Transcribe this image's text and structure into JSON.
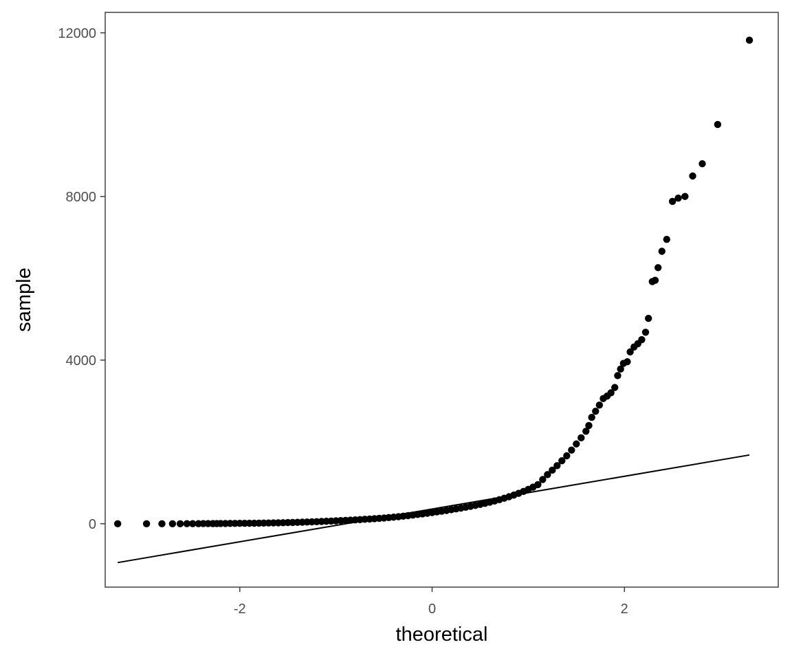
{
  "chart_data": {
    "type": "scatter",
    "title": "",
    "xlabel": "theoretical",
    "ylabel": "sample",
    "xlim": [
      -3.4,
      3.6
    ],
    "ylim": [
      -1550,
      12500
    ],
    "x_ticks": [
      -2,
      0,
      2
    ],
    "x_tick_labels": [
      "-2",
      "0",
      "2"
    ],
    "y_ticks": [
      0,
      4000,
      8000,
      12000
    ],
    "y_tick_labels": [
      "0",
      "4000",
      "8000",
      "12000"
    ],
    "grid": false,
    "legend": "none",
    "colors": {
      "points": "#000000",
      "line": "#000000",
      "panel_border": "#333333",
      "tick_label": "#4d4d4d"
    },
    "reference_line": {
      "x": [
        -3.27,
        3.3
      ],
      "y": [
        -950,
        1680
      ]
    },
    "points": [
      {
        "x": -3.27,
        "y": 0
      },
      {
        "x": -2.97,
        "y": 0
      },
      {
        "x": -2.81,
        "y": 0
      },
      {
        "x": -2.7,
        "y": 0
      },
      {
        "x": -2.62,
        "y": 0
      },
      {
        "x": -2.55,
        "y": 1
      },
      {
        "x": -2.49,
        "y": 2
      },
      {
        "x": -2.43,
        "y": 2
      },
      {
        "x": -2.38,
        "y": 3
      },
      {
        "x": -2.33,
        "y": 3
      },
      {
        "x": -2.28,
        "y": 4
      },
      {
        "x": -2.24,
        "y": 4
      },
      {
        "x": -2.2,
        "y": 5
      },
      {
        "x": -2.15,
        "y": 6
      },
      {
        "x": -2.1,
        "y": 7
      },
      {
        "x": -2.05,
        "y": 8
      },
      {
        "x": -2.0,
        "y": 9
      },
      {
        "x": -1.95,
        "y": 10
      },
      {
        "x": -1.9,
        "y": 11
      },
      {
        "x": -1.85,
        "y": 12
      },
      {
        "x": -1.8,
        "y": 14
      },
      {
        "x": -1.75,
        "y": 16
      },
      {
        "x": -1.7,
        "y": 18
      },
      {
        "x": -1.65,
        "y": 20
      },
      {
        "x": -1.6,
        "y": 22
      },
      {
        "x": -1.55,
        "y": 25
      },
      {
        "x": -1.5,
        "y": 28
      },
      {
        "x": -1.45,
        "y": 31
      },
      {
        "x": -1.4,
        "y": 34
      },
      {
        "x": -1.35,
        "y": 38
      },
      {
        "x": -1.3,
        "y": 42
      },
      {
        "x": -1.25,
        "y": 46
      },
      {
        "x": -1.2,
        "y": 50
      },
      {
        "x": -1.15,
        "y": 55
      },
      {
        "x": -1.1,
        "y": 60
      },
      {
        "x": -1.05,
        "y": 65
      },
      {
        "x": -1.0,
        "y": 70
      },
      {
        "x": -0.95,
        "y": 76
      },
      {
        "x": -0.9,
        "y": 82
      },
      {
        "x": -0.85,
        "y": 88
      },
      {
        "x": -0.8,
        "y": 94
      },
      {
        "x": -0.75,
        "y": 101
      },
      {
        "x": -0.7,
        "y": 108
      },
      {
        "x": -0.65,
        "y": 115
      },
      {
        "x": -0.6,
        "y": 123
      },
      {
        "x": -0.55,
        "y": 131
      },
      {
        "x": -0.5,
        "y": 140
      },
      {
        "x": -0.45,
        "y": 150
      },
      {
        "x": -0.4,
        "y": 160
      },
      {
        "x": -0.35,
        "y": 172
      },
      {
        "x": -0.3,
        "y": 185
      },
      {
        "x": -0.25,
        "y": 198
      },
      {
        "x": -0.2,
        "y": 212
      },
      {
        "x": -0.15,
        "y": 226
      },
      {
        "x": -0.1,
        "y": 241
      },
      {
        "x": -0.05,
        "y": 256
      },
      {
        "x": 0.0,
        "y": 272
      },
      {
        "x": 0.05,
        "y": 289
      },
      {
        "x": 0.1,
        "y": 306
      },
      {
        "x": 0.15,
        "y": 324
      },
      {
        "x": 0.2,
        "y": 343
      },
      {
        "x": 0.25,
        "y": 362
      },
      {
        "x": 0.3,
        "y": 382
      },
      {
        "x": 0.35,
        "y": 403
      },
      {
        "x": 0.4,
        "y": 425
      },
      {
        "x": 0.45,
        "y": 448
      },
      {
        "x": 0.5,
        "y": 472
      },
      {
        "x": 0.55,
        "y": 498
      },
      {
        "x": 0.6,
        "y": 526
      },
      {
        "x": 0.65,
        "y": 556
      },
      {
        "x": 0.7,
        "y": 588
      },
      {
        "x": 0.75,
        "y": 623
      },
      {
        "x": 0.8,
        "y": 660
      },
      {
        "x": 0.85,
        "y": 700
      },
      {
        "x": 0.9,
        "y": 743
      },
      {
        "x": 0.95,
        "y": 790
      },
      {
        "x": 1.0,
        "y": 840
      },
      {
        "x": 1.05,
        "y": 895
      },
      {
        "x": 1.1,
        "y": 955
      },
      {
        "x": 1.15,
        "y": 1080
      },
      {
        "x": 1.2,
        "y": 1200
      },
      {
        "x": 1.25,
        "y": 1310
      },
      {
        "x": 1.3,
        "y": 1420
      },
      {
        "x": 1.35,
        "y": 1540
      },
      {
        "x": 1.4,
        "y": 1660
      },
      {
        "x": 1.45,
        "y": 1800
      },
      {
        "x": 1.5,
        "y": 1950
      },
      {
        "x": 1.55,
        "y": 2100
      },
      {
        "x": 1.6,
        "y": 2260
      },
      {
        "x": 1.63,
        "y": 2400
      },
      {
        "x": 1.66,
        "y": 2600
      },
      {
        "x": 1.7,
        "y": 2750
      },
      {
        "x": 1.74,
        "y": 2900
      },
      {
        "x": 1.78,
        "y": 3060
      },
      {
        "x": 1.82,
        "y": 3120
      },
      {
        "x": 1.86,
        "y": 3200
      },
      {
        "x": 1.9,
        "y": 3330
      },
      {
        "x": 1.93,
        "y": 3620
      },
      {
        "x": 1.96,
        "y": 3780
      },
      {
        "x": 1.99,
        "y": 3920
      },
      {
        "x": 2.03,
        "y": 3960
      },
      {
        "x": 2.06,
        "y": 4200
      },
      {
        "x": 2.1,
        "y": 4320
      },
      {
        "x": 2.14,
        "y": 4400
      },
      {
        "x": 2.18,
        "y": 4500
      },
      {
        "x": 2.22,
        "y": 4680
      },
      {
        "x": 2.25,
        "y": 5020
      },
      {
        "x": 2.29,
        "y": 5920
      },
      {
        "x": 2.32,
        "y": 5950
      },
      {
        "x": 2.35,
        "y": 6260
      },
      {
        "x": 2.39,
        "y": 6660
      },
      {
        "x": 2.44,
        "y": 6950
      },
      {
        "x": 2.5,
        "y": 7880
      },
      {
        "x": 2.56,
        "y": 7960
      },
      {
        "x": 2.63,
        "y": 8000
      },
      {
        "x": 2.71,
        "y": 8500
      },
      {
        "x": 2.81,
        "y": 8800
      },
      {
        "x": 2.97,
        "y": 9760
      },
      {
        "x": 3.3,
        "y": 11820
      }
    ]
  }
}
